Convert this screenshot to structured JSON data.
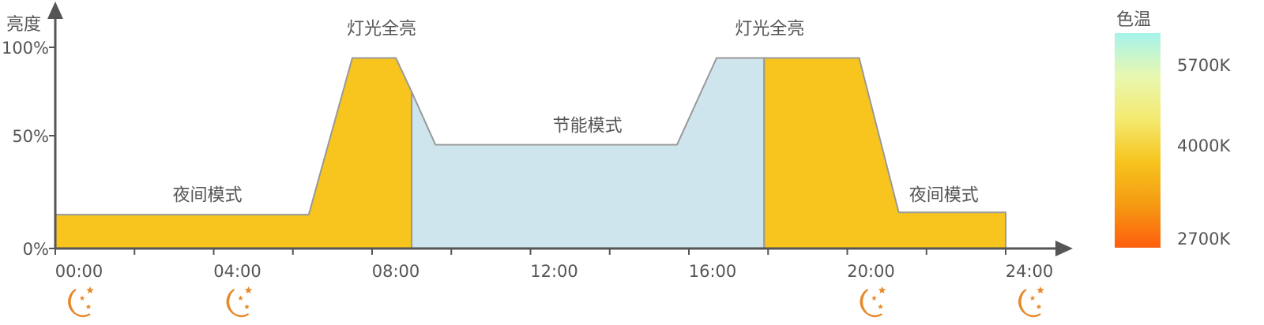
{
  "chart_data": {
    "type": "area",
    "ylabel": "亮度",
    "y_ticks": [
      {
        "value": 0,
        "label": "0%"
      },
      {
        "value": 50,
        "label": "50%"
      },
      {
        "value": 100,
        "label": "100%"
      }
    ],
    "x_ticks_hours": [
      0,
      2,
      4,
      6,
      8,
      10,
      12,
      14,
      16,
      18,
      20,
      22,
      24
    ],
    "x_tick_labels": [
      {
        "hour": 0,
        "label": "00:00"
      },
      {
        "hour": 4,
        "label": "04:00"
      },
      {
        "hour": 8,
        "label": "08:00"
      },
      {
        "hour": 12,
        "label": "12:00"
      },
      {
        "hour": 16,
        "label": "16:00"
      },
      {
        "hour": 20,
        "label": "20:00"
      },
      {
        "hour": 24,
        "label": "24:00"
      }
    ],
    "xlim": [
      0,
      24
    ],
    "ylim": [
      0,
      100
    ],
    "brightness_curve": [
      {
        "hour": 0,
        "value": 15
      },
      {
        "hour": 6.4,
        "value": 15
      },
      {
        "hour": 7.5,
        "value": 94
      },
      {
        "hour": 8.6,
        "value": 94
      },
      {
        "hour": 9.6,
        "value": 46
      },
      {
        "hour": 15.7,
        "value": 46
      },
      {
        "hour": 16.7,
        "value": 94
      },
      {
        "hour": 20.3,
        "value": 94
      },
      {
        "hour": 21.3,
        "value": 16
      },
      {
        "hour": 24,
        "value": 16
      }
    ],
    "color_segments": [
      {
        "from": 0,
        "to": 9.0,
        "color": "#f7c51e"
      },
      {
        "from": 9.0,
        "to": 17.9,
        "color": "#cfe5ee"
      },
      {
        "from": 17.9,
        "to": 24,
        "color": "#f7c51e"
      }
    ],
    "annotations": [
      {
        "text": "夜间模式",
        "hour": 3.6,
        "value": 24
      },
      {
        "text": "灯光全亮",
        "hour": 8.0,
        "value": 111
      },
      {
        "text": "节能模式",
        "hour": 13.2,
        "value": 56
      },
      {
        "text": "灯光全亮",
        "hour": 17.8,
        "value": 111
      },
      {
        "text": "夜间模式",
        "hour": 22.2,
        "value": 24
      }
    ],
    "night_icon_hours": [
      0,
      4,
      20,
      24
    ],
    "colorbar": {
      "title": "色温",
      "labels": [
        "5700K",
        "4000K",
        "2700K"
      ],
      "stops": [
        "#a6f3ec",
        "#e8f7b0",
        "#f4ea70",
        "#f6c41e",
        "#f59a12",
        "#ff5e0e"
      ]
    },
    "line_color": "#999999",
    "axis_color": "#555555",
    "icon_color": "#e8892a"
  }
}
